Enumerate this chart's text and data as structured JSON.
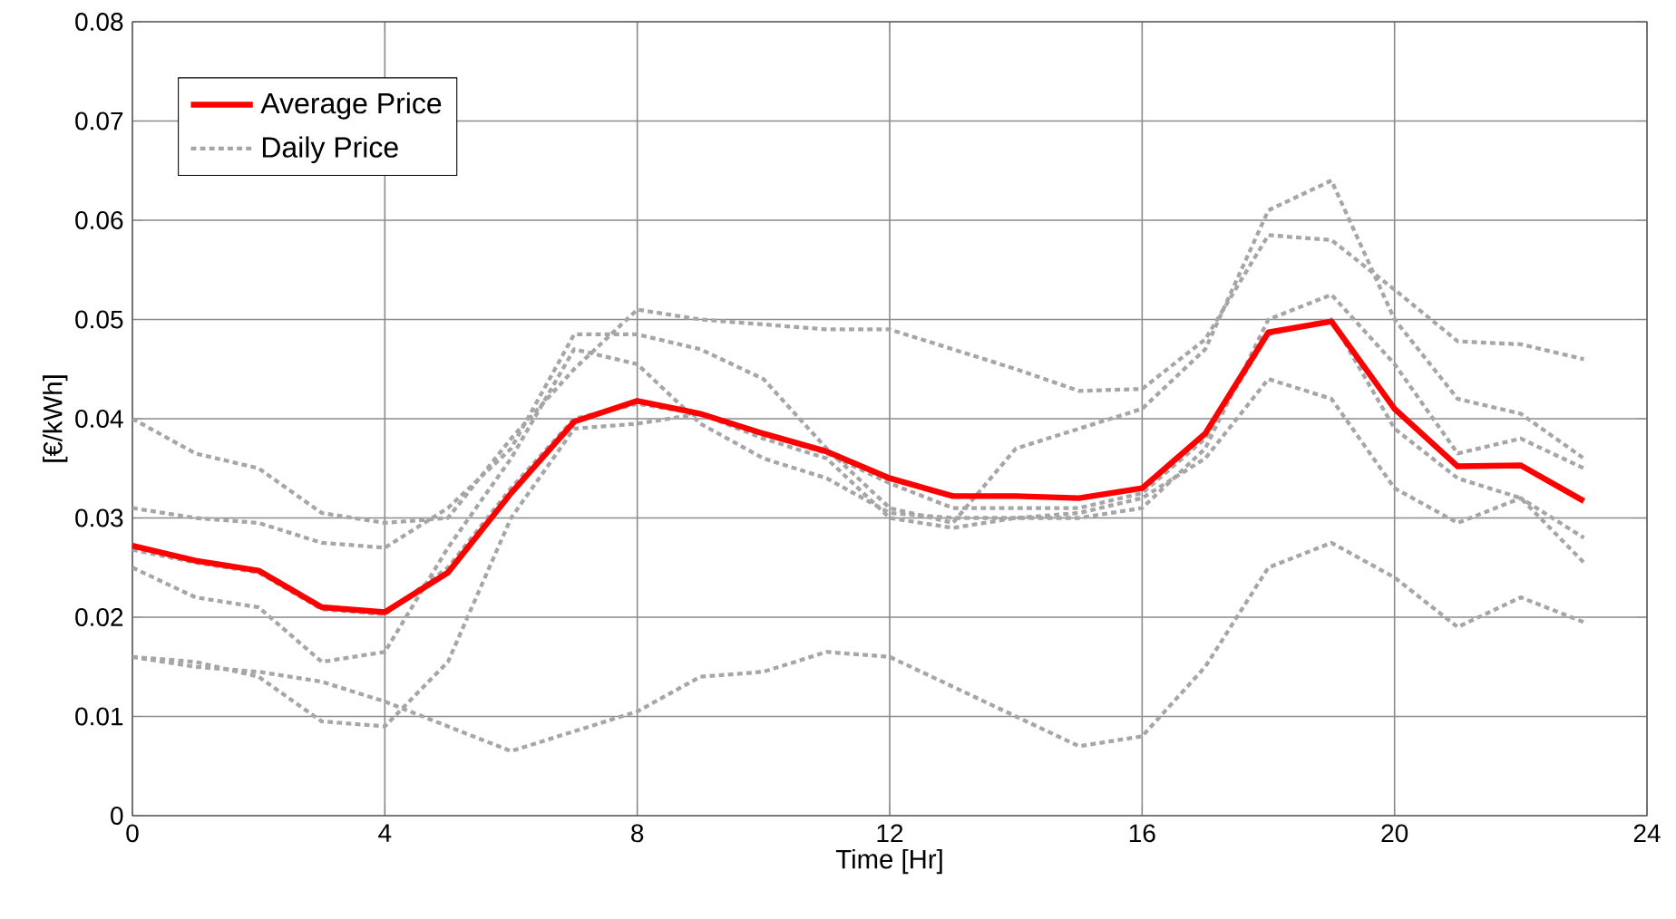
{
  "chart_data": {
    "type": "line",
    "xlabel": "Time [Hr]",
    "ylabel": "[€/kWh]",
    "x": [
      0,
      1,
      2,
      3,
      4,
      5,
      6,
      7,
      8,
      9,
      10,
      11,
      12,
      13,
      14,
      15,
      16,
      17,
      18,
      19,
      20,
      21,
      22,
      23
    ],
    "xlim": [
      0,
      24
    ],
    "xticks": [
      0,
      4,
      8,
      12,
      16,
      20,
      24
    ],
    "ylim": [
      0,
      0.08
    ],
    "yticks": [
      0,
      0.01,
      0.02,
      0.03,
      0.04,
      0.05,
      0.06,
      0.07,
      0.08
    ],
    "grid": true,
    "legend": "top left",
    "marker": "none",
    "series": [
      {
        "name": "Average Price",
        "color": "#ff0000",
        "line_style": "solid",
        "values": [
          0.0272,
          0.0257,
          0.0247,
          0.021,
          0.0205,
          0.0245,
          0.0325,
          0.0397,
          0.0418,
          0.0405,
          0.0385,
          0.0367,
          0.034,
          0.0322,
          0.0322,
          0.032,
          0.033,
          0.0385,
          0.0487,
          0.0498,
          0.041,
          0.0352,
          0.0353,
          0.0317
        ]
      },
      {
        "name": "Daily Price",
        "color": "#a6a6a6",
        "line_style": "dotted",
        "values": [
          0.04,
          0.0365,
          0.035,
          0.0305,
          0.0295,
          0.03,
          0.038,
          0.045,
          0.051,
          0.05,
          0.0495,
          0.049,
          0.049,
          0.047,
          0.045,
          0.0428,
          0.043,
          0.048,
          0.0585,
          0.058,
          0.053,
          0.0478,
          0.0475,
          0.046
        ]
      },
      {
        "color": "#a6a6a6",
        "line_style": "dotted",
        "values": [
          0.031,
          0.03,
          0.0295,
          0.0275,
          0.027,
          0.031,
          0.037,
          0.0485,
          0.0485,
          0.047,
          0.044,
          0.037,
          0.031,
          0.0295,
          0.037,
          0.039,
          0.041,
          0.047,
          0.061,
          0.064,
          0.05,
          0.042,
          0.0405,
          0.036
        ]
      },
      {
        "color": "#a6a6a6",
        "line_style": "dotted",
        "values": [
          0.025,
          0.022,
          0.021,
          0.0155,
          0.0165,
          0.027,
          0.036,
          0.047,
          0.0455,
          0.0395,
          0.036,
          0.034,
          0.0305,
          0.03,
          0.03,
          0.03,
          0.031,
          0.037,
          0.05,
          0.0525,
          0.0455,
          0.0365,
          0.038,
          0.035
        ]
      },
      {
        "color": "#a6a6a6",
        "line_style": "dotted",
        "values": [
          0.016,
          0.0155,
          0.014,
          0.0095,
          0.009,
          0.0155,
          0.03,
          0.039,
          0.0395,
          0.0405,
          0.038,
          0.036,
          0.03,
          0.029,
          0.03,
          0.0305,
          0.032,
          0.036,
          0.044,
          0.042,
          0.033,
          0.0295,
          0.032,
          0.028
        ]
      },
      {
        "color": "#a6a6a6",
        "line_style": "dotted",
        "values": [
          0.016,
          0.015,
          0.0145,
          0.0135,
          0.0115,
          0.009,
          0.0065,
          0.0085,
          0.0105,
          0.014,
          0.0145,
          0.0165,
          0.016,
          0.013,
          0.01,
          0.007,
          0.008,
          0.015,
          0.025,
          0.0275,
          0.024,
          0.019,
          0.022,
          0.0195
        ]
      },
      {
        "color": "#a6a6a6",
        "line_style": "dotted",
        "values": [
          0.0268,
          0.0255,
          0.0245,
          0.0208,
          0.0203,
          0.025,
          0.033,
          0.04,
          0.0415,
          0.0405,
          0.0385,
          0.0365,
          0.0335,
          0.031,
          0.031,
          0.031,
          0.0325,
          0.038,
          0.0485,
          0.05,
          0.039,
          0.034,
          0.032,
          0.0255
        ]
      }
    ]
  }
}
